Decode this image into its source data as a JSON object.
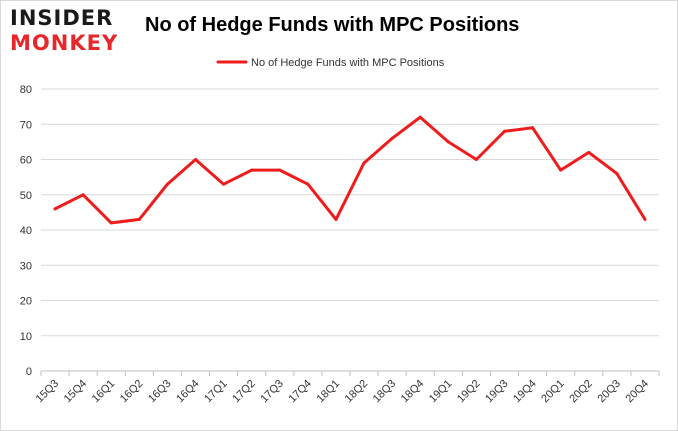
{
  "logo": {
    "line1": "INSIDER",
    "line2": "MONKEY"
  },
  "colors": {
    "series": "#ee1c1c",
    "grid": "#d9d9d9",
    "axis": "#c0c0c0",
    "logo_dark": "#1a1a1a",
    "logo_red": "#e8272a"
  },
  "chart_data": {
    "type": "line",
    "title": "No of Hedge Funds with MPC Positions",
    "xlabel": "",
    "ylabel": "",
    "ylim": [
      0,
      80
    ],
    "yticks": [
      0,
      10,
      20,
      30,
      40,
      50,
      60,
      70,
      80
    ],
    "grid": "horizontal",
    "legend": "top-center",
    "categories": [
      "15Q3",
      "15Q4",
      "16Q1",
      "16Q2",
      "16Q3",
      "16Q4",
      "17Q1",
      "17Q2",
      "17Q3",
      "17Q4",
      "18Q1",
      "18Q2",
      "18Q3",
      "18Q4",
      "19Q1",
      "19Q2",
      "19Q3",
      "19Q4",
      "20Q1",
      "20Q2",
      "20Q3",
      "20Q4"
    ],
    "series": [
      {
        "name": "No of Hedge Funds with MPC Positions",
        "values": [
          46,
          50,
          42,
          43,
          53,
          60,
          53,
          57,
          57,
          53,
          43,
          59,
          66,
          72,
          65,
          60,
          68,
          69,
          57,
          62,
          56,
          43
        ]
      }
    ]
  }
}
